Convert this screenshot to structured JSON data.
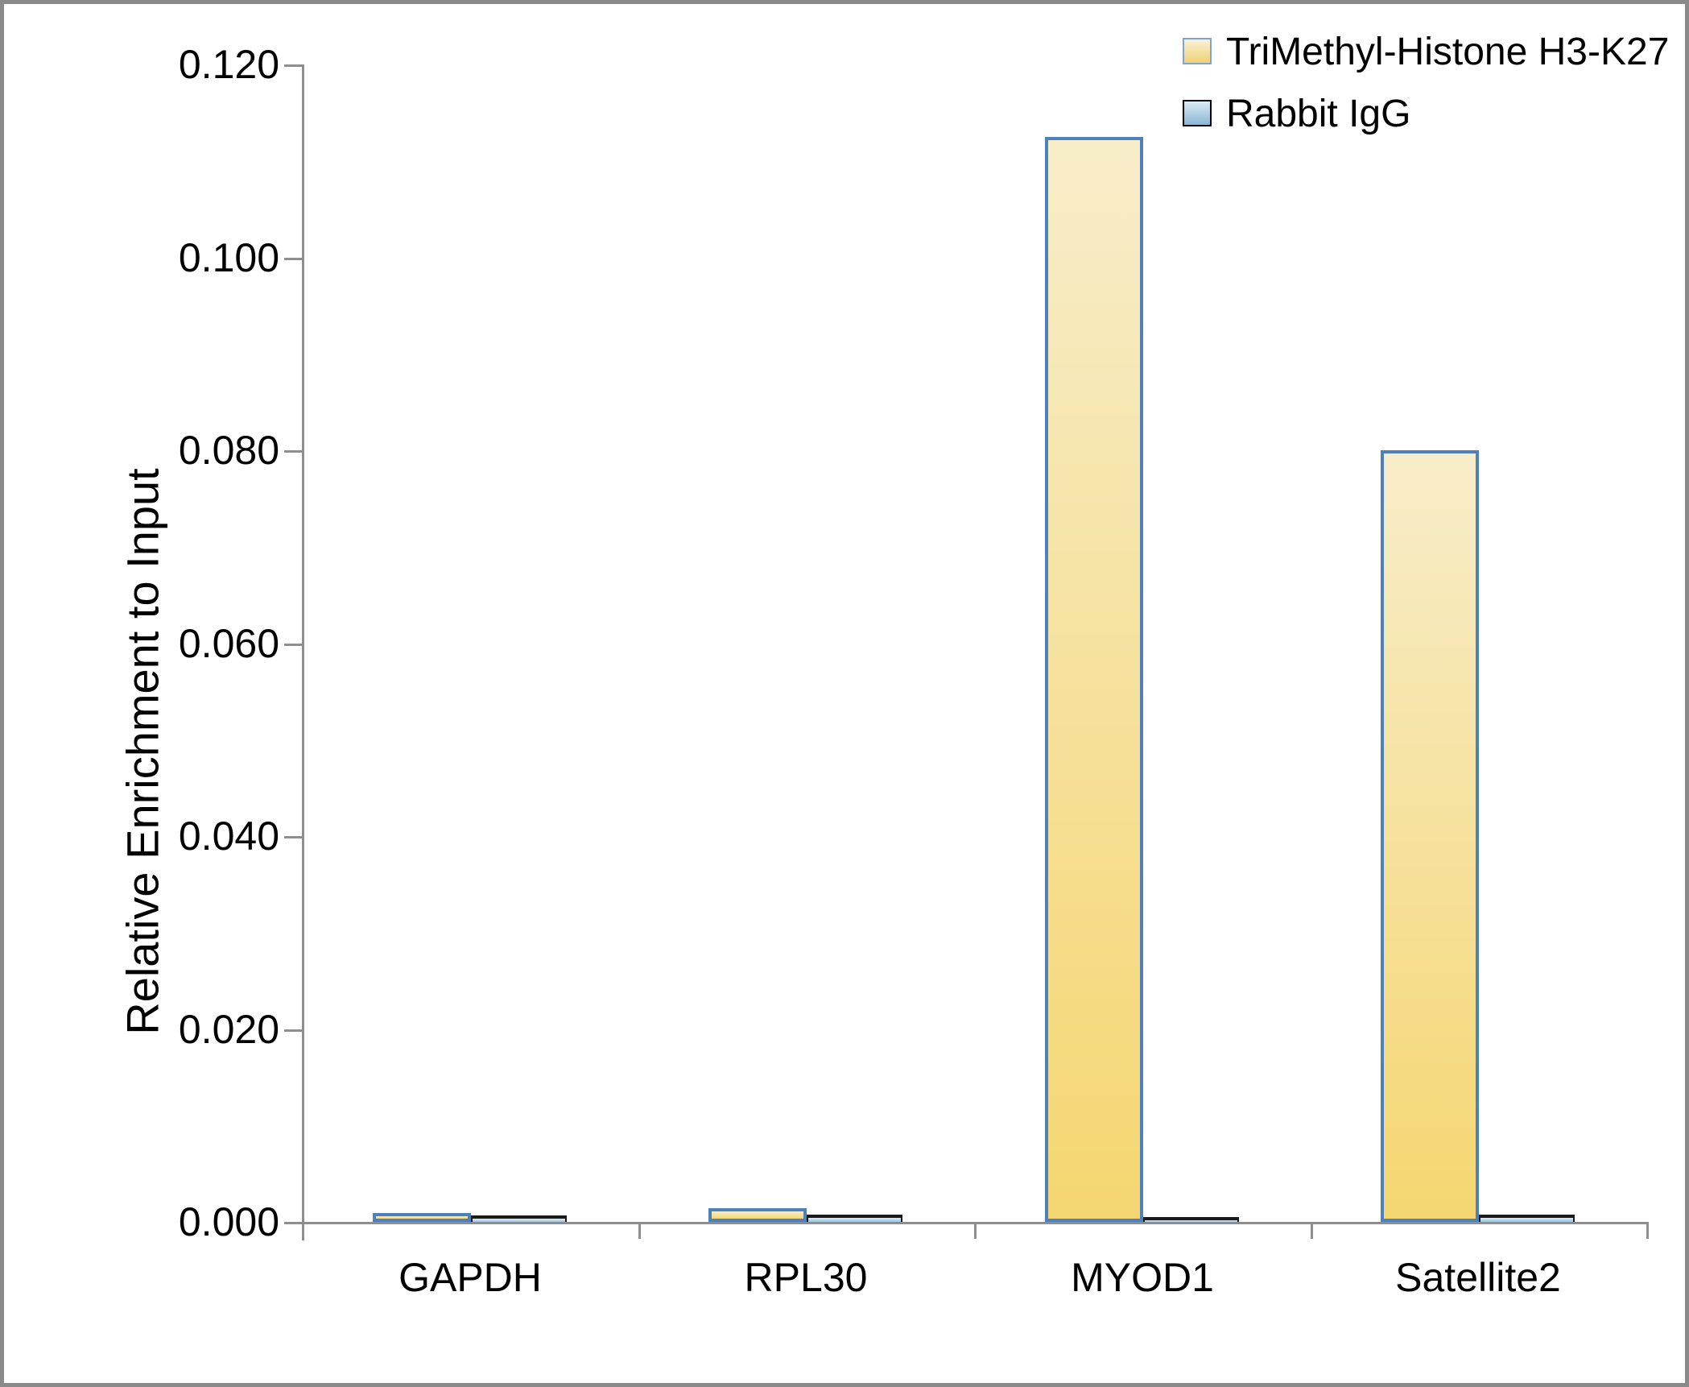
{
  "chart_data": {
    "type": "bar",
    "title": "",
    "xlabel": "",
    "ylabel": "Relative Enrichment to Input",
    "categories": [
      "GAPDH",
      "RPL30",
      "MYOD1",
      "Satellite2"
    ],
    "series": [
      {
        "name": "TriMethyl-Histone H3-K27",
        "values": [
          0.0009,
          0.0014,
          0.1125,
          0.08
        ],
        "fill_top": "#F7EDC9",
        "fill_bottom": "#F5D671",
        "border": "#4E80BC"
      },
      {
        "name": "Rabbit IgG",
        "values": [
          0.0003,
          0.0004,
          0.0002,
          0.0004
        ],
        "fill_top": "#DBEAF5",
        "fill_bottom": "#9CC3DF",
        "border": "#000000"
      }
    ],
    "ylim": [
      0,
      0.12
    ],
    "ytick_labels": [
      "0.000",
      "0.020",
      "0.040",
      "0.060",
      "0.080",
      "0.100",
      "0.120"
    ],
    "grid": false,
    "legend_position": "top-right",
    "axis_color": "#8E8E8E"
  }
}
